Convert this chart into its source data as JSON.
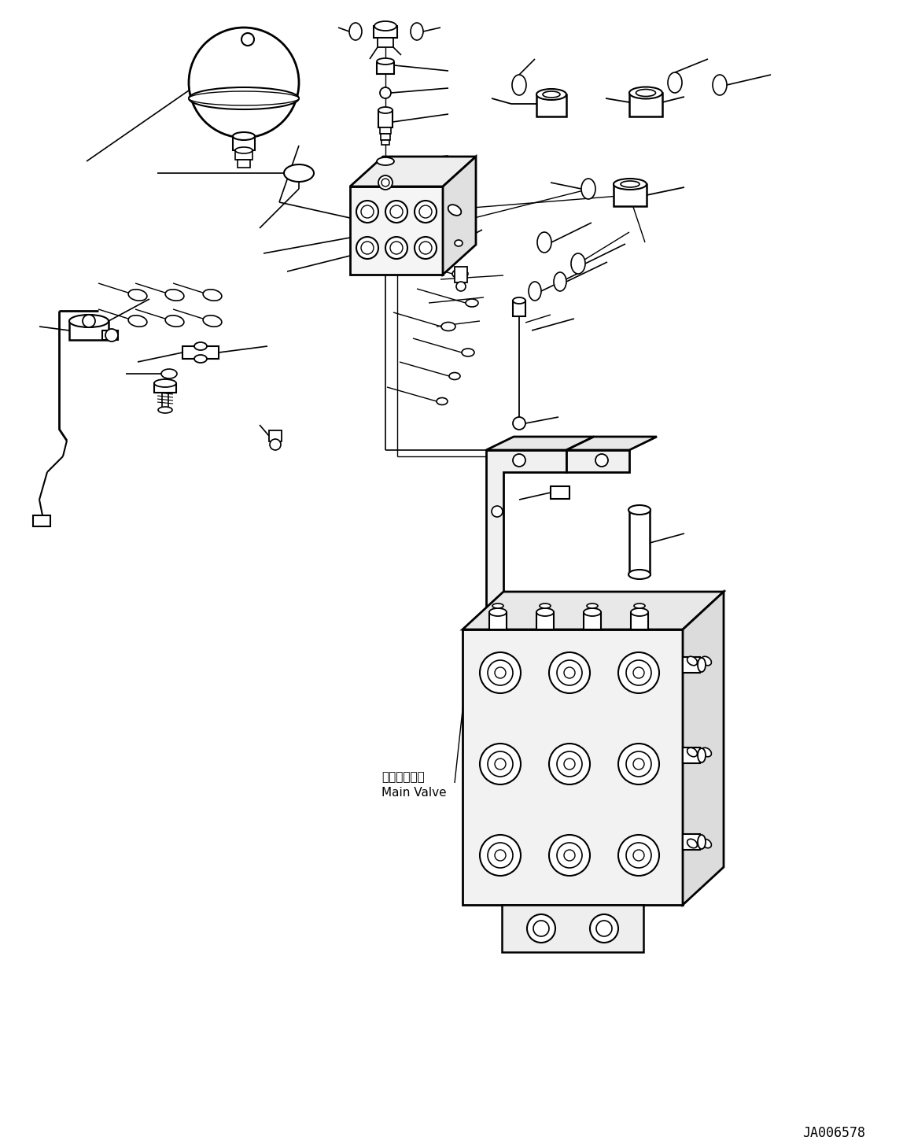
{
  "background_color": "#ffffff",
  "line_color": "#000000",
  "title_code": "JA006578",
  "main_valve_label_jp": "メインバルブ",
  "main_valve_label_en": "Main Valve",
  "fig_width": 11.48,
  "fig_height": 14.59,
  "dpi": 100
}
